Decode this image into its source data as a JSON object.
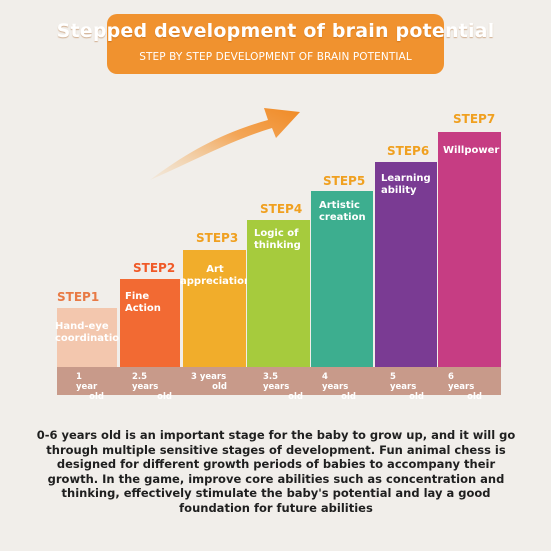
{
  "header": {
    "title": "Stepped development of brain potential",
    "subtitle": "STEP BY STEP DEVELOPMENT OF BRAIN POTENTIAL"
  },
  "steps": [
    {
      "step": "STEP1",
      "ability": "Hand-eye coordination",
      "age_line1": "1 year",
      "age_line2": "old",
      "color": "#f3c7ae",
      "label_color": "#e87a45"
    },
    {
      "step": "STEP2",
      "ability": "Fine Action",
      "age_line1": "2.5 years",
      "age_line2": "old",
      "color": "#f26a33",
      "label_color": "#f05a28"
    },
    {
      "step": "STEP3",
      "ability": "Art appreciation",
      "age_line1": "3 years",
      "age_line2": "old",
      "color": "#f1ad2b",
      "label_color": "#f0a020"
    },
    {
      "step": "STEP4",
      "ability": "Logic of thinking",
      "age_line1": "3.5 years",
      "age_line2": "old",
      "color": "#a6cb3d",
      "label_color": "#f0a020"
    },
    {
      "step": "STEP5",
      "ability": "Artistic creation",
      "age_line1": "4 years",
      "age_line2": "old",
      "color": "#3dae8f",
      "label_color": "#f0a020"
    },
    {
      "step": "STEP6",
      "ability": "Learning ability",
      "age_line1": "5 years",
      "age_line2": "old",
      "color": "#7a3b93",
      "label_color": "#f0a020"
    },
    {
      "step": "STEP7",
      "ability": "Willpower",
      "age_line1": "6 years",
      "age_line2": "old",
      "color": "#c63d83",
      "label_color": "#f0a020"
    }
  ],
  "description": "0-6 years old is an important stage for the baby to grow up, and it will go through multiple sensitive stages of development. Fun animal chess is designed for different growth periods of babies to accompany their growth. In the game, improve core abilities such as concentration and thinking, effectively stimulate the baby's potential and lay a good foundation for future abilities"
}
